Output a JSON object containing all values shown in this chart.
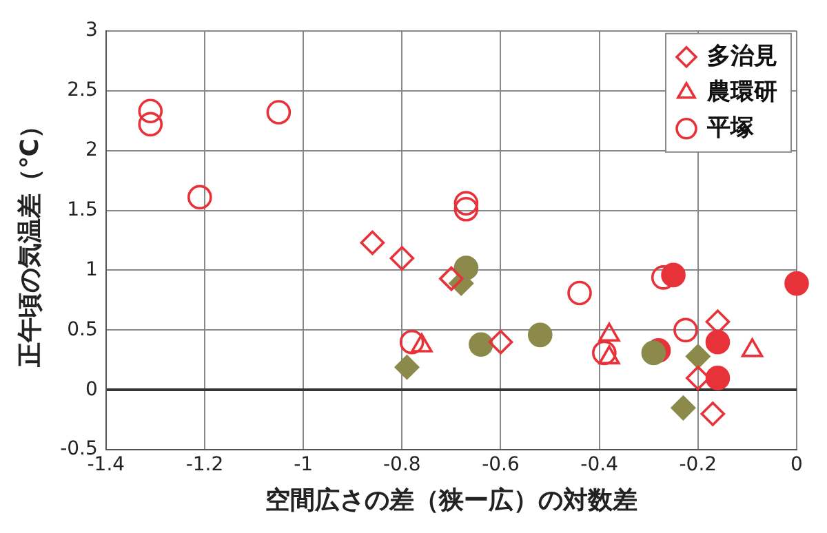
{
  "chart_data": {
    "type": "scatter",
    "xlabel": "空間広さの差（狭ー広）の対数差",
    "ylabel": "正午頃の気温差（℃）",
    "xlim": [
      -1.4,
      0
    ],
    "xticks": [
      -1.4,
      -1.2,
      -1,
      -0.8,
      -0.6,
      -0.4,
      -0.2,
      0
    ],
    "ylim": [
      -0.5,
      3
    ],
    "yticks": [
      -0.5,
      0,
      0.5,
      1,
      1.5,
      2,
      2.5,
      3
    ],
    "grid": true,
    "legend": "top right",
    "series": [
      {
        "name": "多治見",
        "color": "#e8323a",
        "marker": "diamond",
        "x": [
          -0.86,
          -0.8,
          -0.7,
          -0.6,
          -0.16,
          -0.2,
          -0.17
        ],
        "values": [
          1.23,
          1.1,
          0.93,
          0.4,
          0.57,
          0.1,
          -0.2
        ]
      },
      {
        "name": "農環研",
        "color": "#e8323a",
        "marker": "triangle",
        "x": [
          -0.76,
          -0.38,
          -0.38,
          -0.09
        ],
        "values": [
          0.37,
          0.46,
          0.27,
          0.33
        ]
      },
      {
        "name": "平塚",
        "color": "#e8323a",
        "marker": "circle",
        "x": [
          -1.31,
          -1.31,
          -1.05,
          -1.21,
          -0.67,
          -0.67,
          -0.44,
          -0.27,
          -0.225,
          -0.78,
          -0.39
        ],
        "values": [
          2.33,
          2.22,
          2.32,
          1.61,
          1.51,
          1.56,
          0.81,
          0.94,
          0.5,
          0.4,
          0.31
        ]
      },
      {
        "color": "#8b8a4a",
        "marker": "diamond",
        "x": [
          -0.79,
          -0.68,
          -0.2,
          -0.23
        ],
        "values": [
          0.19,
          0.89,
          0.28,
          -0.15
        ]
      },
      {
        "color": "#8b8a4a",
        "marker": "circle",
        "x": [
          -0.67,
          -0.64,
          -0.52,
          -0.29
        ],
        "values": [
          1.02,
          0.38,
          0.46,
          0.31
        ]
      },
      {
        "color": "#e8323a",
        "marker": "circle",
        "x": [
          -0.25,
          0,
          -0.28,
          -0.16,
          -0.16
        ],
        "values": [
          0.96,
          0.89,
          0.33,
          0.4,
          0.1
        ]
      }
    ]
  }
}
